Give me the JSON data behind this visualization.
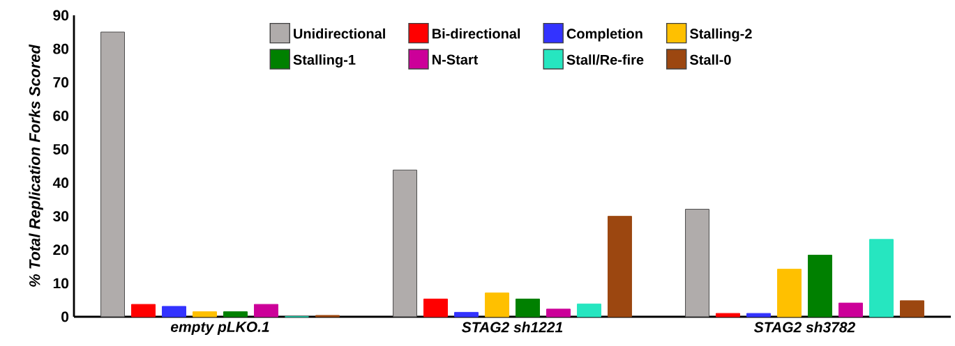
{
  "chart_data": {
    "type": "bar",
    "ylabel": "% Total Replication Forks Scored",
    "categories": [
      "empty pLKO.1",
      "STAG2 sh1221",
      "STAG2 sh3782"
    ],
    "series": [
      {
        "name": "Unidirectional",
        "color": "#b0acab",
        "values": [
          85,
          43.8,
          32.1
        ]
      },
      {
        "name": "Bi-directional",
        "color": "#ff0000",
        "values": [
          3.7,
          5.3,
          1.0
        ]
      },
      {
        "name": "Completion",
        "color": "#3333ff",
        "values": [
          3.1,
          1.3,
          1.0
        ]
      },
      {
        "name": "Stalling-2",
        "color": "#ffc000",
        "values": [
          1.5,
          7.1,
          14.2
        ]
      },
      {
        "name": "Stalling-1",
        "color": "#008000",
        "values": [
          1.5,
          5.3,
          18.4
        ]
      },
      {
        "name": "N-Start",
        "color": "#cc0099",
        "values": [
          3.7,
          2.3,
          4.1
        ]
      },
      {
        "name": "Stall/Re-fire",
        "color": "#26e6c0",
        "values": [
          0,
          3.8,
          23.1
        ]
      },
      {
        "name": "Stall-0",
        "color": "#9c4710",
        "values": [
          0.4,
          30,
          4.8
        ]
      }
    ],
    "ylim": [
      0,
      90
    ],
    "yticks": [
      0,
      10,
      20,
      30,
      40,
      50,
      60,
      70,
      80,
      90
    ],
    "grid": false,
    "legend": "top"
  }
}
